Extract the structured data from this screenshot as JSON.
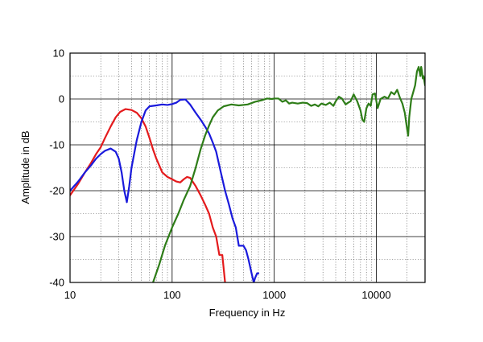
{
  "chart_data": {
    "type": "line",
    "xlabel": "Frequency in Hz",
    "ylabel": "Amplitude in dB",
    "x_scale": "log",
    "xlim": [
      10,
      30000
    ],
    "ylim": [
      -40,
      10
    ],
    "x_ticks": [
      10,
      100,
      1000,
      10000
    ],
    "x_tick_labels": [
      "10",
      "100",
      "1000",
      "10000"
    ],
    "y_ticks": [
      10,
      0,
      -10,
      -20,
      -30,
      -40
    ],
    "y_tick_labels": [
      "10",
      "0",
      "-10",
      "-20",
      "-30",
      "-40"
    ],
    "grid": true,
    "series": [
      {
        "color": "#e41a1c",
        "points": [
          [
            10,
            -21
          ],
          [
            12,
            -18.5
          ],
          [
            14,
            -16
          ],
          [
            16,
            -14
          ],
          [
            18,
            -12
          ],
          [
            20,
            -10.5
          ],
          [
            22,
            -8.5
          ],
          [
            25,
            -6
          ],
          [
            28,
            -4
          ],
          [
            31,
            -2.8
          ],
          [
            35,
            -2.2
          ],
          [
            40,
            -2.4
          ],
          [
            45,
            -3
          ],
          [
            50,
            -4.2
          ],
          [
            55,
            -6
          ],
          [
            60,
            -8.5
          ],
          [
            65,
            -11
          ],
          [
            70,
            -13
          ],
          [
            80,
            -16
          ],
          [
            90,
            -17
          ],
          [
            100,
            -17.5
          ],
          [
            110,
            -18
          ],
          [
            120,
            -18.2
          ],
          [
            130,
            -17.5
          ],
          [
            140,
            -17
          ],
          [
            150,
            -17.2
          ],
          [
            170,
            -19
          ],
          [
            190,
            -21
          ],
          [
            210,
            -23
          ],
          [
            230,
            -25
          ],
          [
            250,
            -28
          ],
          [
            270,
            -30
          ],
          [
            290,
            -34
          ],
          [
            310,
            -34
          ],
          [
            330,
            -40
          ]
        ]
      },
      {
        "color": "#1a1adc",
        "points": [
          [
            10,
            -20
          ],
          [
            12,
            -18
          ],
          [
            14,
            -16
          ],
          [
            16,
            -14.5
          ],
          [
            18,
            -13
          ],
          [
            20,
            -12
          ],
          [
            22,
            -11.3
          ],
          [
            25,
            -10.8
          ],
          [
            28,
            -11.5
          ],
          [
            30,
            -13
          ],
          [
            32,
            -16
          ],
          [
            34,
            -20
          ],
          [
            36,
            -22.5
          ],
          [
            38,
            -19
          ],
          [
            40,
            -15
          ],
          [
            45,
            -9
          ],
          [
            50,
            -5
          ],
          [
            55,
            -2.5
          ],
          [
            60,
            -1.6
          ],
          [
            70,
            -1.4
          ],
          [
            80,
            -1.2
          ],
          [
            90,
            -1.3
          ],
          [
            100,
            -1.1
          ],
          [
            110,
            -0.8
          ],
          [
            120,
            -0.2
          ],
          [
            135,
            -0.1
          ],
          [
            150,
            -1.2
          ],
          [
            170,
            -3
          ],
          [
            190,
            -4.5
          ],
          [
            210,
            -6
          ],
          [
            230,
            -7.5
          ],
          [
            250,
            -9.5
          ],
          [
            270,
            -11.5
          ],
          [
            300,
            -16
          ],
          [
            330,
            -20
          ],
          [
            360,
            -23
          ],
          [
            390,
            -26
          ],
          [
            420,
            -28
          ],
          [
            450,
            -32
          ],
          [
            500,
            -32
          ],
          [
            530,
            -33
          ],
          [
            560,
            -35
          ],
          [
            600,
            -38
          ],
          [
            630,
            -40
          ],
          [
            650,
            -39
          ],
          [
            680,
            -38
          ],
          [
            700,
            -38
          ]
        ]
      },
      {
        "color": "#2e7d18",
        "points": [
          [
            65,
            -40
          ],
          [
            75,
            -36
          ],
          [
            85,
            -32
          ],
          [
            100,
            -28
          ],
          [
            115,
            -25
          ],
          [
            130,
            -22
          ],
          [
            150,
            -19
          ],
          [
            170,
            -15
          ],
          [
            190,
            -11
          ],
          [
            210,
            -8
          ],
          [
            230,
            -5.8
          ],
          [
            250,
            -4
          ],
          [
            280,
            -2.5
          ],
          [
            320,
            -1.6
          ],
          [
            380,
            -1.2
          ],
          [
            450,
            -1.4
          ],
          [
            550,
            -1.2
          ],
          [
            650,
            -0.6
          ],
          [
            750,
            -0.3
          ],
          [
            850,
            0.1
          ],
          [
            950,
            0
          ],
          [
            1000,
            0.1
          ],
          [
            1100,
            0.1
          ],
          [
            1200,
            -0.6
          ],
          [
            1300,
            -0.3
          ],
          [
            1400,
            -1
          ],
          [
            1500,
            -0.8
          ],
          [
            1700,
            -1
          ],
          [
            1900,
            -0.8
          ],
          [
            2100,
            -0.9
          ],
          [
            2300,
            -1.5
          ],
          [
            2500,
            -1.2
          ],
          [
            2700,
            -1.6
          ],
          [
            2900,
            -1
          ],
          [
            3200,
            -1.3
          ],
          [
            3500,
            -0.8
          ],
          [
            3800,
            -1.5
          ],
          [
            4000,
            -0.5
          ],
          [
            4300,
            0.5
          ],
          [
            4600,
            0.1
          ],
          [
            5000,
            -1.2
          ],
          [
            5300,
            -0.8
          ],
          [
            5600,
            -0.5
          ],
          [
            6000,
            1
          ],
          [
            6500,
            -0.5
          ],
          [
            7000,
            -2.5
          ],
          [
            7300,
            -4.5
          ],
          [
            7600,
            -5
          ],
          [
            8000,
            -2
          ],
          [
            8400,
            -1
          ],
          [
            8800,
            -1.5
          ],
          [
            9200,
            1
          ],
          [
            9700,
            1.2
          ],
          [
            10300,
            -2
          ],
          [
            11000,
            0
          ],
          [
            12000,
            0.5
          ],
          [
            13000,
            0.1
          ],
          [
            14000,
            1.5
          ],
          [
            15000,
            1
          ],
          [
            16000,
            2
          ],
          [
            17000,
            0.3
          ],
          [
            18000,
            -1
          ],
          [
            19000,
            -3
          ],
          [
            20000,
            -6.5
          ],
          [
            20500,
            -8
          ],
          [
            21000,
            -4
          ],
          [
            22000,
            0
          ],
          [
            23000,
            1.5
          ],
          [
            24000,
            3
          ],
          [
            25000,
            6
          ],
          [
            26000,
            7
          ],
          [
            27000,
            5
          ],
          [
            27500,
            7
          ],
          [
            28000,
            6
          ],
          [
            28500,
            4.5
          ],
          [
            29000,
            5
          ],
          [
            30000,
            3
          ]
        ]
      }
    ]
  }
}
